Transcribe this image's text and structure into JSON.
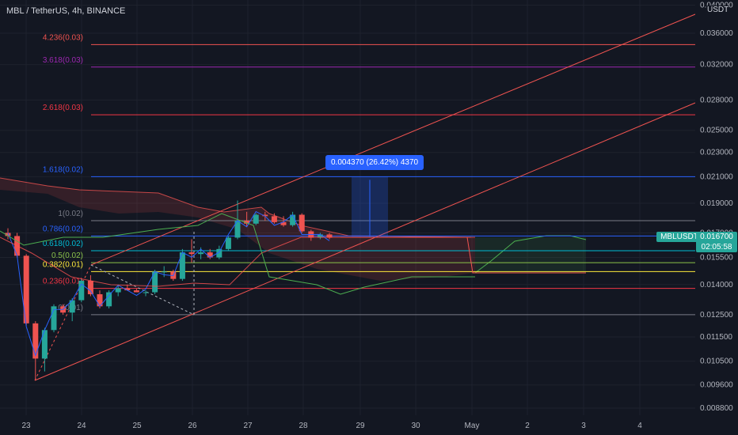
{
  "title": "MBL / TetherUS, 4h, BINANCE",
  "currency": "USDT",
  "current_price": {
    "symbol": "MBLUSDT",
    "value": "0.016700",
    "countdown": "02:05:58"
  },
  "measure_label": "0.004370 (26.42%) 4370",
  "colors": {
    "up": "#26a69a",
    "down": "#ef5350",
    "tenkan": "#2962ff",
    "kijun": "#ef5350",
    "chikou": "#4caf50",
    "cloud_bear": "#ef5350",
    "cloud_bull": "#4caf50"
  },
  "chart_data": {
    "type": "candlestick",
    "y_axis": {
      "scale": "log",
      "ticks": [
        "0.040000",
        "0.036000",
        "0.032000",
        "0.028000",
        "0.025000",
        "0.023000",
        "0.021000",
        "0.019000",
        "0.017000",
        "0.015500",
        "0.014000",
        "0.012500",
        "0.011500",
        "0.010500",
        "0.009600",
        "0.008800"
      ]
    },
    "x_axis": {
      "ticks": [
        "23",
        "24",
        "25",
        "26",
        "27",
        "28",
        "29",
        "30",
        "May",
        "2",
        "3",
        "4"
      ]
    },
    "fib_levels": [
      {
        "label": "4.236(0.03)",
        "value": 0.0345,
        "color": "#ef5350"
      },
      {
        "label": "3.618(0.03)",
        "value": 0.0317,
        "color": "#9c27b0"
      },
      {
        "label": "2.618(0.03)",
        "value": 0.0265,
        "color": "#f23645"
      },
      {
        "label": "1.618(0.02)",
        "value": 0.021,
        "color": "#2962ff"
      },
      {
        "label": "1(0.02)",
        "value": 0.0178,
        "color": "#787b86"
      },
      {
        "label": "0.786(0.02)",
        "value": 0.0168,
        "color": "#2962ff"
      },
      {
        "label": "0.618(0.02)",
        "value": 0.0159,
        "color": "#00bcd4"
      },
      {
        "label": "0.5(0.02)",
        "value": 0.0152,
        "color": "#8bc34a"
      },
      {
        "label": "0.382(0.01)",
        "value": 0.0147,
        "color": "#ffeb3b"
      },
      {
        "label": "0.236(0.01)",
        "value": 0.0138,
        "color": "#f23645"
      },
      {
        "label": "0(0.01)",
        "value": 0.0125,
        "color": "#787b86"
      }
    ],
    "candles": [
      [
        0.017,
        0.0173,
        0.0166,
        0.0168
      ],
      [
        0.0168,
        0.017,
        0.0155,
        0.0156
      ],
      [
        0.0156,
        0.0157,
        0.012,
        0.0121
      ],
      [
        0.0121,
        0.0122,
        0.0098,
        0.0106
      ],
      [
        0.0106,
        0.0119,
        0.0101,
        0.0118
      ],
      [
        0.0118,
        0.013,
        0.0117,
        0.0129
      ],
      [
        0.0129,
        0.013,
        0.0125,
        0.0126
      ],
      [
        0.0126,
        0.0133,
        0.0122,
        0.0132
      ],
      [
        0.0132,
        0.0143,
        0.0131,
        0.0142
      ],
      [
        0.0142,
        0.0145,
        0.0134,
        0.0135
      ],
      [
        0.0135,
        0.0137,
        0.0128,
        0.0129
      ],
      [
        0.0129,
        0.0137,
        0.0128,
        0.0136
      ],
      [
        0.0136,
        0.014,
        0.0134,
        0.0138
      ],
      [
        0.0138,
        0.014,
        0.0137,
        0.0137
      ],
      [
        0.0137,
        0.0138,
        0.0136,
        0.0136
      ],
      [
        0.0136,
        0.0137,
        0.0134,
        0.0136
      ],
      [
        0.0136,
        0.0148,
        0.0135,
        0.0147
      ],
      [
        0.0147,
        0.015,
        0.0144,
        0.0147
      ],
      [
        0.0147,
        0.0148,
        0.0142,
        0.0143
      ],
      [
        0.0143,
        0.016,
        0.0142,
        0.0158
      ],
      [
        0.0158,
        0.0166,
        0.0152,
        0.0157
      ],
      [
        0.0157,
        0.0161,
        0.0154,
        0.0158
      ],
      [
        0.0158,
        0.016,
        0.0154,
        0.0155
      ],
      [
        0.0155,
        0.0162,
        0.0154,
        0.016
      ],
      [
        0.016,
        0.0168,
        0.0159,
        0.0167
      ],
      [
        0.0167,
        0.0192,
        0.0166,
        0.0178
      ],
      [
        0.0178,
        0.0184,
        0.0174,
        0.0176
      ],
      [
        0.0176,
        0.0183,
        0.0175,
        0.0182
      ],
      [
        0.0182,
        0.0184,
        0.0178,
        0.0181
      ],
      [
        0.0181,
        0.0183,
        0.0176,
        0.0177
      ],
      [
        0.0177,
        0.0181,
        0.0174,
        0.0175
      ],
      [
        0.0175,
        0.0184,
        0.0174,
        0.0182
      ],
      [
        0.0182,
        0.0183,
        0.017,
        0.0171
      ],
      [
        0.0171,
        0.0172,
        0.0165,
        0.0167
      ],
      [
        0.0167,
        0.017,
        0.0166,
        0.0169
      ],
      [
        0.0169,
        0.017,
        0.0166,
        0.0167
      ]
    ],
    "measure": {
      "from": 0.0167,
      "to": 0.021
    }
  }
}
